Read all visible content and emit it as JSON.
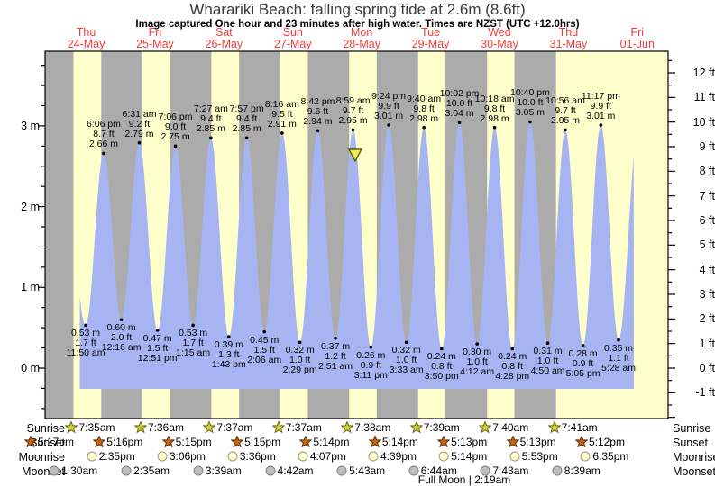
{
  "chart_data": {
    "type": "area",
    "title": "Wharariki Beach: falling  spring tide at 2.6m (8.6ft)",
    "subtitle": "Image captured One hour and 23 minutes after high water. Times are NZST (UTC +12.0hrs)",
    "days": [
      {
        "weekday": "Thu",
        "date": "24-May"
      },
      {
        "weekday": "Fri",
        "date": "25-May"
      },
      {
        "weekday": "Sat",
        "date": "26-May"
      },
      {
        "weekday": "Sun",
        "date": "27-May"
      },
      {
        "weekday": "Mon",
        "date": "28-May"
      },
      {
        "weekday": "Tue",
        "date": "29-May"
      },
      {
        "weekday": "Wed",
        "date": "30-May"
      },
      {
        "weekday": "Thu",
        "date": "31-May"
      },
      {
        "weekday": "Fri",
        "date": "01-Jun"
      }
    ],
    "y_axis_left": {
      "unit": "m",
      "major_ticks": [
        0,
        1,
        2,
        3
      ]
    },
    "y_axis_right": {
      "unit": "ft",
      "major_ticks": [
        -1,
        0,
        1,
        2,
        3,
        4,
        5,
        6,
        7,
        8,
        9,
        10,
        11,
        12
      ]
    },
    "tide_events": [
      {
        "kind": "low",
        "day": 0,
        "time": "11:50 am",
        "m": 0.53,
        "ft": 1.7
      },
      {
        "kind": "high",
        "day": 0,
        "time": "6:06 pm",
        "m": 2.66,
        "ft": 8.7
      },
      {
        "kind": "low",
        "day": 1,
        "time": "12:16 am",
        "m": 0.6,
        "ft": 2.0
      },
      {
        "kind": "high",
        "day": 1,
        "time": "6:31 am",
        "m": 2.79,
        "ft": 9.2
      },
      {
        "kind": "low",
        "day": 1,
        "time": "12:51 pm",
        "m": 0.47,
        "ft": 1.5
      },
      {
        "kind": "high",
        "day": 1,
        "time": "7:06 pm",
        "m": 2.75,
        "ft": 9.0
      },
      {
        "kind": "low",
        "day": 2,
        "time": "1:15 am",
        "m": 0.53,
        "ft": 1.7
      },
      {
        "kind": "high",
        "day": 2,
        "time": "7:27 am",
        "m": 2.85,
        "ft": 9.4
      },
      {
        "kind": "low",
        "day": 2,
        "time": "1:43 pm",
        "m": 0.39,
        "ft": 1.3
      },
      {
        "kind": "high",
        "day": 2,
        "time": "7:57 pm",
        "m": 2.85,
        "ft": 9.4
      },
      {
        "kind": "low",
        "day": 3,
        "time": "2:06 am",
        "m": 0.45,
        "ft": 1.5
      },
      {
        "kind": "high",
        "day": 3,
        "time": "8:16 am",
        "m": 2.91,
        "ft": 9.5
      },
      {
        "kind": "low",
        "day": 3,
        "time": "2:29 pm",
        "m": 0.32,
        "ft": 1.0
      },
      {
        "kind": "high",
        "day": 3,
        "time": "8:42 pm",
        "m": 2.94,
        "ft": 9.6
      },
      {
        "kind": "low",
        "day": 4,
        "time": "2:51 am",
        "m": 0.37,
        "ft": 1.2
      },
      {
        "kind": "high",
        "day": 4,
        "time": "8:59 am",
        "m": 2.95,
        "ft": 9.7
      },
      {
        "kind": "low",
        "day": 4,
        "time": "3:11 pm",
        "m": 0.26,
        "ft": 0.9
      },
      {
        "kind": "high",
        "day": 4,
        "time": "9:24 pm",
        "m": 3.01,
        "ft": 9.9
      },
      {
        "kind": "low",
        "day": 5,
        "time": "3:33 am",
        "m": 0.32,
        "ft": 1.0
      },
      {
        "kind": "high",
        "day": 5,
        "time": "9:40 am",
        "m": 2.98,
        "ft": 9.8
      },
      {
        "kind": "low",
        "day": 5,
        "time": "3:50 pm",
        "m": 0.24,
        "ft": 0.8
      },
      {
        "kind": "high",
        "day": 5,
        "time": "10:02 pm",
        "m": 3.04,
        "ft": 10.0
      },
      {
        "kind": "low",
        "day": 6,
        "time": "4:12 am",
        "m": 0.3,
        "ft": 1.0
      },
      {
        "kind": "high",
        "day": 6,
        "time": "10:18 am",
        "m": 2.98,
        "ft": 9.8
      },
      {
        "kind": "low",
        "day": 6,
        "time": "4:28 pm",
        "m": 0.24,
        "ft": 0.8
      },
      {
        "kind": "high",
        "day": 6,
        "time": "10:40 pm",
        "m": 3.05,
        "ft": 10.0
      },
      {
        "kind": "low",
        "day": 7,
        "time": "4:50 am",
        "m": 0.31,
        "ft": 1.0
      },
      {
        "kind": "high",
        "day": 7,
        "time": "10:56 am",
        "m": 2.95,
        "ft": 9.7
      },
      {
        "kind": "low",
        "day": 7,
        "time": "5:05 pm",
        "m": 0.28,
        "ft": 0.9
      },
      {
        "kind": "high",
        "day": 7,
        "time": "11:17 pm",
        "m": 3.01,
        "ft": 9.9
      },
      {
        "kind": "low",
        "day": 8,
        "time": "5:28 am",
        "m": 0.35,
        "ft": 1.1
      }
    ],
    "boundary_extremes": [
      {
        "t_hours": 4.6,
        "m": 2.4
      },
      {
        "t_hours": 204.2,
        "m": 2.9
      }
    ],
    "capture_marker": {
      "day": 4,
      "time": "10:22 am"
    },
    "astro_rows": [
      {
        "label": "Sunrise",
        "icon": "sunrise-star",
        "events": [
          {
            "day": 0,
            "time": "7:35am"
          },
          {
            "day": 1,
            "time": "7:36am"
          },
          {
            "day": 2,
            "time": "7:37am"
          },
          {
            "day": 3,
            "time": "7:37am"
          },
          {
            "day": 4,
            "time": "7:38am"
          },
          {
            "day": 5,
            "time": "7:39am"
          },
          {
            "day": 6,
            "time": "7:40am"
          },
          {
            "day": 7,
            "time": "7:41am"
          }
        ]
      },
      {
        "label": "Sunset",
        "icon": "sunset-star",
        "events": [
          {
            "day": -1,
            "time": "5:17pm"
          },
          {
            "day": 0,
            "time": "5:16pm"
          },
          {
            "day": 1,
            "time": "5:15pm"
          },
          {
            "day": 2,
            "time": "5:15pm"
          },
          {
            "day": 3,
            "time": "5:14pm"
          },
          {
            "day": 4,
            "time": "5:14pm"
          },
          {
            "day": 5,
            "time": "5:13pm"
          },
          {
            "day": 6,
            "time": "5:13pm"
          },
          {
            "day": 7,
            "time": "5:12pm"
          }
        ]
      },
      {
        "label": "Moonrise",
        "icon": "moonrise-moon",
        "events": [
          {
            "day": 0,
            "time": "2:35pm"
          },
          {
            "day": 1,
            "time": "3:06pm"
          },
          {
            "day": 2,
            "time": "3:36pm"
          },
          {
            "day": 3,
            "time": "4:07pm"
          },
          {
            "day": 4,
            "time": "4:39pm"
          },
          {
            "day": 5,
            "time": "5:14pm"
          },
          {
            "day": 6,
            "time": "5:53pm"
          },
          {
            "day": 7,
            "time": "6:35pm"
          }
        ]
      },
      {
        "label": "Moonset",
        "icon": "moonset-moon",
        "events": [
          {
            "day": 0,
            "time": "1:30am"
          },
          {
            "day": 1,
            "time": "2:35am"
          },
          {
            "day": 2,
            "time": "3:39am"
          },
          {
            "day": 3,
            "time": "4:42am"
          },
          {
            "day": 4,
            "time": "5:43am"
          },
          {
            "day": 5,
            "time": "6:44am"
          },
          {
            "day": 6,
            "time": "7:43am"
          },
          {
            "day": 7,
            "time": "8:39am"
          }
        ]
      }
    ],
    "moon_phase_note": "Full Moon | 2:19am",
    "colors": {
      "day_band": "#FFFFCC",
      "night_band": "#ABABAB",
      "tide_fill": "#A7B4F2",
      "date_red": "#F43B3B",
      "sunrise_star_fill": "#CCCC44",
      "sunrise_star_stroke": "#6B6B00",
      "sunset_star_fill": "#C96615",
      "sunset_star_stroke": "#5A2D00",
      "moonrise_fill": "#FFFFD0",
      "moonrise_stroke": "#999977",
      "moonset_fill": "#BFBFBF",
      "moonset_stroke": "#808080",
      "marker_fill": "#EDED55",
      "marker_stroke": "#5E5E00"
    }
  }
}
